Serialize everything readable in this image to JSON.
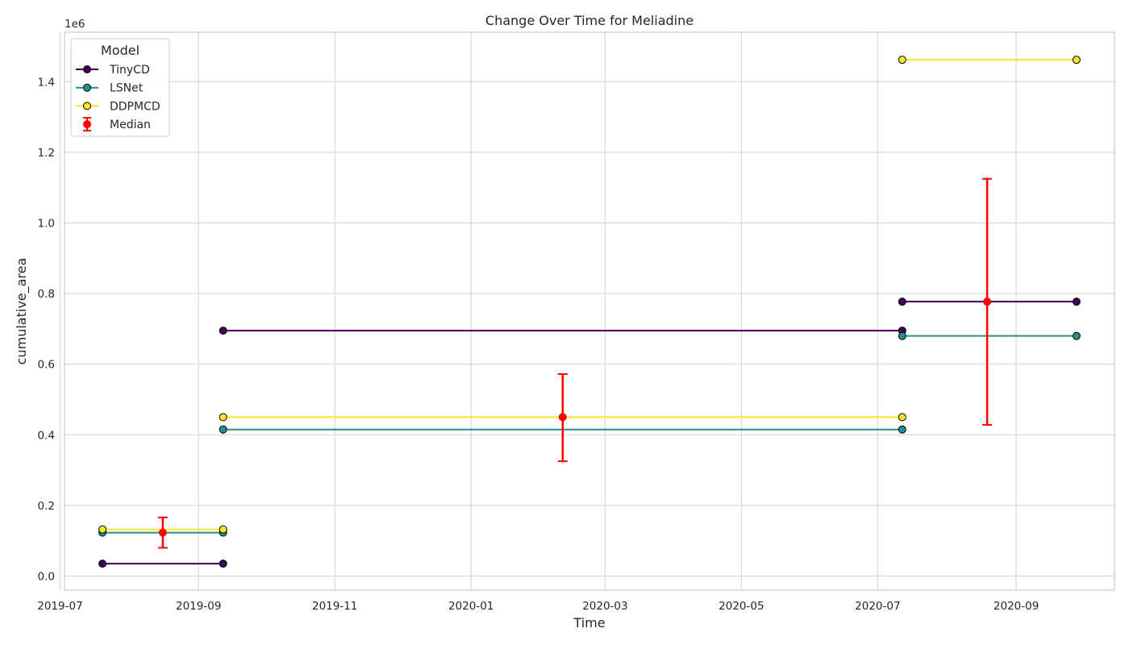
{
  "chart_data": {
    "type": "line",
    "title": "Change Over Time for Meliadine",
    "xlabel": "Time",
    "ylabel": "cumulative_area",
    "y_scale_label": "1e6",
    "xlim": [
      "2019-07-03",
      "2020-10-15"
    ],
    "ylim": [
      -40000,
      1540000
    ],
    "x_ticks": [
      "2019-07",
      "2019-09",
      "2019-11",
      "2020-01",
      "2020-03",
      "2020-05",
      "2020-07",
      "2020-09"
    ],
    "y_ticks": [
      0,
      200000,
      400000,
      600000,
      800000,
      1000000,
      1200000,
      1400000
    ],
    "y_tick_labels": [
      "0.0",
      "0.2",
      "0.4",
      "0.6",
      "0.8",
      "1.0",
      "1.2",
      "1.4"
    ],
    "grid": true,
    "legend": {
      "title": "Model",
      "placement": "top-left"
    },
    "series": [
      {
        "name": "TinyCD",
        "color": "#440154",
        "segments": [
          [
            [
              "2019-07-20",
              35000
            ],
            [
              "2019-09-12",
              35000
            ]
          ],
          [
            [
              "2019-09-12",
              695000
            ],
            [
              "2020-07-12",
              695000
            ]
          ],
          [
            [
              "2020-07-12",
              777000
            ],
            [
              "2020-09-28",
              777000
            ]
          ]
        ]
      },
      {
        "name": "LSNet",
        "color": "#21918c",
        "segments": [
          [
            [
              "2019-07-20",
              123000
            ],
            [
              "2019-09-12",
              123000
            ]
          ],
          [
            [
              "2019-09-12",
              415000
            ],
            [
              "2020-07-12",
              415000
            ]
          ],
          [
            [
              "2020-07-12",
              680000
            ],
            [
              "2020-09-28",
              680000
            ]
          ]
        ]
      },
      {
        "name": "DDPMCD",
        "color": "#fde725",
        "segments": [
          [
            [
              "2019-07-20",
              132000
            ],
            [
              "2019-09-12",
              132000
            ]
          ],
          [
            [
              "2019-09-12",
              450000
            ],
            [
              "2020-07-12",
              450000
            ]
          ],
          [
            [
              "2020-07-12",
              1462000
            ],
            [
              "2020-09-28",
              1462000
            ]
          ]
        ]
      }
    ],
    "median": {
      "name": "Median",
      "color": "#ff0000",
      "points": [
        {
          "x": "2019-08-16",
          "y": 123000,
          "low": 80000,
          "high": 166000
        },
        {
          "x": "2020-02-11",
          "y": 450000,
          "low": 325000,
          "high": 572000
        },
        {
          "x": "2020-08-19",
          "y": 777000,
          "low": 428000,
          "high": 1125000
        }
      ]
    }
  }
}
